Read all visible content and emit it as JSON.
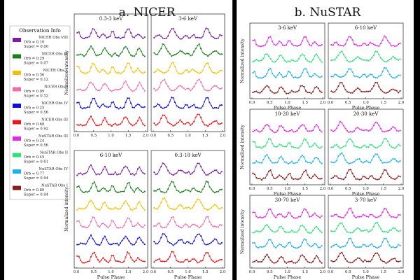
{
  "title_left": "a. NICER",
  "title_right": "b. NuSTAR",
  "legend_title": "Observation Info",
  "axis": {
    "ylabel": "Normalized intensity",
    "xlabel": "Pulse Phase",
    "xticks": [
      "0.0",
      "0.5",
      "1.0",
      "1.5",
      "2.0"
    ]
  },
  "legend": [
    {
      "name": "NICER Obs VIII",
      "orb": "Orb = 0.10",
      "super": "Super = 0.00",
      "color": "#7b1fa2"
    },
    {
      "name": "NICER Obs IX",
      "orb": "Orb = 0.29",
      "super": "Super = 0.07",
      "color": "#1a7f1a"
    },
    {
      "name": "NICER Obs X",
      "orb": "Orb = 0.56",
      "super": "Super = 0.12",
      "color": "#f2c200"
    },
    {
      "name": "NICER Obs I",
      "orb": "Orb = 0.09",
      "super": "Super = 0.52",
      "color": "#f06fa8"
    },
    {
      "name": "NICER Obs IV",
      "orb": "Orb = 0.25",
      "super": "Super = 0.56",
      "color": "#1010d0"
    },
    {
      "name": "NICER Obs III",
      "orb": "Orb = 0.68",
      "super": "Super = 0.92",
      "color": "#e8191b"
    },
    {
      "name": "NuSTAR Obs III",
      "orb": "Orb = 0.24",
      "super": "Super = 0.56",
      "color": "#e627e6"
    },
    {
      "name": "NuSTAR Obs II",
      "orb": "Orb = 0.45",
      "super": "Super = 0.61",
      "color": "#2ee07a"
    },
    {
      "name": "NuSTAR Obs IV",
      "orb": "Orb = 0.77",
      "super": "Super = 0.94",
      "color": "#1fb0e8"
    },
    {
      "name": "NuSTAR Obs I",
      "orb": "Orb = 0.80",
      "super": "Super = 0.94",
      "color": "#8b1a1a"
    }
  ],
  "chart_data": [
    {
      "type": "line",
      "group": "NICER",
      "title": "0.3-3 keV",
      "xlim": [
        0,
        2
      ],
      "xlabel": "",
      "ylabel": "Normalized intensity",
      "series": [
        "NICER Obs VIII",
        "NICER Obs IX",
        "NICER Obs X",
        "NICER Obs I",
        "NICER Obs IV",
        "NICER Obs III"
      ]
    },
    {
      "type": "line",
      "group": "NICER",
      "title": "3-6 keV",
      "xlim": [
        0,
        2
      ],
      "xlabel": "",
      "ylabel": "",
      "series": [
        "NICER Obs VIII",
        "NICER Obs IX",
        "NICER Obs X",
        "NICER Obs I",
        "NICER Obs IV",
        "NICER Obs III"
      ]
    },
    {
      "type": "line",
      "group": "NICER",
      "title": "6-10 keV",
      "xlim": [
        0,
        2
      ],
      "xlabel": "Pulse Phase",
      "ylabel": "Normalized intensity",
      "series": [
        "NICER Obs VIII",
        "NICER Obs IX",
        "NICER Obs X",
        "NICER Obs I",
        "NICER Obs IV",
        "NICER Obs III"
      ]
    },
    {
      "type": "line",
      "group": "NICER",
      "title": "0.3-10 keV",
      "xlim": [
        0,
        2
      ],
      "xlabel": "Pulse Phase",
      "ylabel": "",
      "series": [
        "NICER Obs VIII",
        "NICER Obs IX",
        "NICER Obs X",
        "NICER Obs I",
        "NICER Obs IV",
        "NICER Obs III"
      ]
    },
    {
      "type": "line",
      "group": "NuSTAR",
      "title": "3-6 keV",
      "xlim": [
        0,
        2
      ],
      "xlabel": "Pulse Phase",
      "ylabel": "Normalized intensity",
      "series": [
        "NuSTAR Obs III",
        "NuSTAR Obs II",
        "NuSTAR Obs IV",
        "NuSTAR Obs I"
      ]
    },
    {
      "type": "line",
      "group": "NuSTAR",
      "title": "6-10 keV",
      "xlim": [
        0,
        2
      ],
      "xlabel": "Pulse Phase",
      "ylabel": "",
      "series": [
        "NuSTAR Obs III",
        "NuSTAR Obs II",
        "NuSTAR Obs IV",
        "NuSTAR Obs I"
      ]
    },
    {
      "type": "line",
      "group": "NuSTAR",
      "title": "10-20 keV",
      "xlim": [
        0,
        2
      ],
      "xlabel": "Pulse Phase",
      "ylabel": "Normalized intensity",
      "series": [
        "NuSTAR Obs III",
        "NuSTAR Obs II",
        "NuSTAR Obs IV",
        "NuSTAR Obs I"
      ]
    },
    {
      "type": "line",
      "group": "NuSTAR",
      "title": "20-30 keV",
      "xlim": [
        0,
        2
      ],
      "xlabel": "Pulse Phase",
      "ylabel": "",
      "series": [
        "NuSTAR Obs III",
        "NuSTAR Obs II",
        "NuSTAR Obs IV",
        "NuSTAR Obs I"
      ]
    },
    {
      "type": "line",
      "group": "NuSTAR",
      "title": "30-70 keV",
      "xlim": [
        0,
        2
      ],
      "xlabel": "Pulse Phase",
      "ylabel": "Normalized intensity",
      "series": [
        "NuSTAR Obs III",
        "NuSTAR Obs II",
        "NuSTAR Obs IV",
        "NuSTAR Obs I"
      ]
    },
    {
      "type": "line",
      "group": "NuSTAR",
      "title": "3-70 keV",
      "xlim": [
        0,
        2
      ],
      "xlabel": "Pulse Phase",
      "ylabel": "",
      "series": [
        "NuSTAR Obs III",
        "NuSTAR Obs II",
        "NuSTAR Obs IV",
        "NuSTAR Obs I"
      ]
    }
  ]
}
